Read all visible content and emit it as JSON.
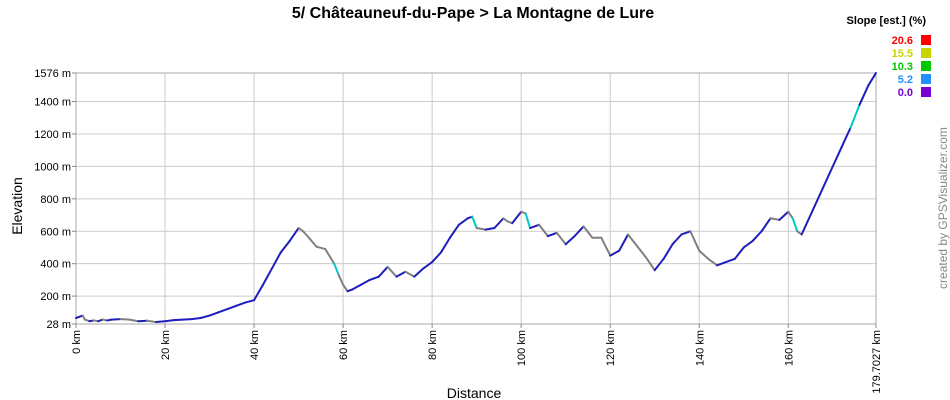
{
  "chart_data": {
    "type": "line",
    "title": "5/ Châteauneuf-du-Pape > La Montagne de Lure",
    "xlabel": "Distance",
    "ylabel": "Elevation",
    "xlim": [
      0,
      179.7027
    ],
    "ylim": [
      28,
      1576
    ],
    "x_ticks": [
      "0 km",
      "20 km",
      "40 km",
      "60 km",
      "80 km",
      "100 km",
      "120 km",
      "140 km",
      "160 km",
      "179.7027 km"
    ],
    "x_tick_values": [
      0,
      20,
      40,
      60,
      80,
      100,
      120,
      140,
      160,
      179.7027
    ],
    "y_ticks": [
      "28 m",
      "200 m",
      "400 m",
      "600 m",
      "800 m",
      "1000 m",
      "1200 m",
      "1400 m",
      "1576 m"
    ],
    "y_tick_values": [
      28,
      200,
      400,
      600,
      800,
      1000,
      1200,
      1400,
      1576
    ],
    "grid": true,
    "legend_position": "top-right",
    "legend": {
      "title": "Slope [est.] (%)",
      "items": [
        {
          "label": "20.6",
          "color": "#ff0000"
        },
        {
          "label": "15.5",
          "color": "#c8d400"
        },
        {
          "label": "10.3",
          "color": "#00c800"
        },
        {
          "label": "5.2",
          "color": "#1e90ff"
        },
        {
          "label": "0.0",
          "color": "#7800d4"
        }
      ]
    },
    "colors": {
      "uphill": "#1e1ebe",
      "downhill": "#808080",
      "steep": "#00c8c8"
    },
    "series": [
      {
        "x": [
          0,
          1.5,
          2,
          3,
          4,
          5,
          6,
          7,
          8,
          10,
          12,
          14,
          16,
          18,
          20,
          22,
          24,
          26,
          28,
          30,
          32,
          34,
          36,
          38,
          40,
          42,
          44,
          46,
          48,
          50,
          51,
          52,
          54,
          56,
          58,
          59,
          60,
          61,
          62,
          64,
          66,
          68,
          70,
          72,
          74,
          76,
          78,
          80,
          82,
          84,
          86,
          88,
          89,
          90,
          92,
          94,
          96,
          97,
          98,
          100,
          101,
          102,
          104,
          106,
          108,
          110,
          112,
          114,
          116,
          118,
          120,
          122,
          124,
          126,
          128,
          130,
          132,
          134,
          136,
          138,
          140,
          142,
          144,
          146,
          148,
          150,
          152,
          154,
          156,
          158,
          160,
          161,
          162,
          163,
          164,
          166,
          168,
          170,
          172,
          174,
          176,
          178,
          179.7027
        ],
        "y": [
          65,
          80,
          55,
          45,
          50,
          45,
          55,
          50,
          55,
          58,
          55,
          45,
          48,
          40,
          45,
          52,
          55,
          58,
          65,
          80,
          100,
          120,
          140,
          160,
          175,
          270,
          370,
          470,
          540,
          620,
          600,
          570,
          505,
          490,
          400,
          330,
          270,
          230,
          240,
          270,
          300,
          320,
          380,
          320,
          350,
          320,
          370,
          410,
          470,
          560,
          640,
          680,
          690,
          620,
          610,
          620,
          680,
          660,
          650,
          720,
          710,
          620,
          640,
          570,
          590,
          520,
          570,
          630,
          560,
          560,
          450,
          480,
          580,
          510,
          440,
          360,
          430,
          520,
          580,
          600,
          480,
          430,
          390,
          410,
          430,
          500,
          540,
          600,
          680,
          670,
          720,
          680,
          600,
          580,
          640,
          760,
          880,
          1000,
          1120,
          1240,
          1380,
          1500,
          1576
        ]
      }
    ]
  },
  "credit": "created by GPSVisualizer.com"
}
